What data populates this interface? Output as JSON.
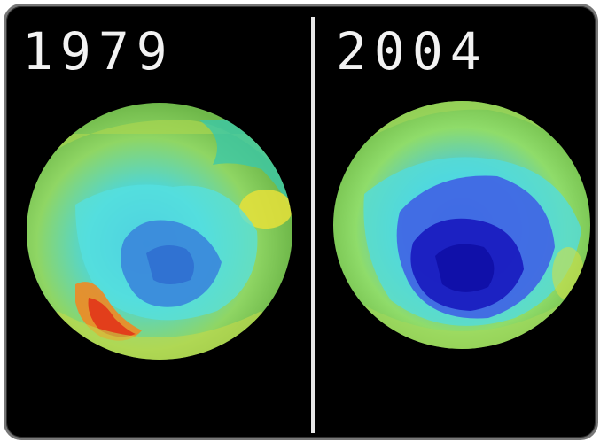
{
  "images": [
    {
      "year": "1979",
      "colors": {
        "rim": "#9fd04a",
        "mid": "#52d8c4",
        "core": "#3a9bdc",
        "hole": "#2e6fd6",
        "hot": "#e33b1c",
        "warm": "#f3a51f"
      }
    },
    {
      "year": "2004",
      "colors": {
        "rim": "#a6d64a",
        "mid": "#4fd9d2",
        "core": "#3c55e0",
        "hole": "#1414b8",
        "warm": "#d8d84a"
      }
    }
  ]
}
